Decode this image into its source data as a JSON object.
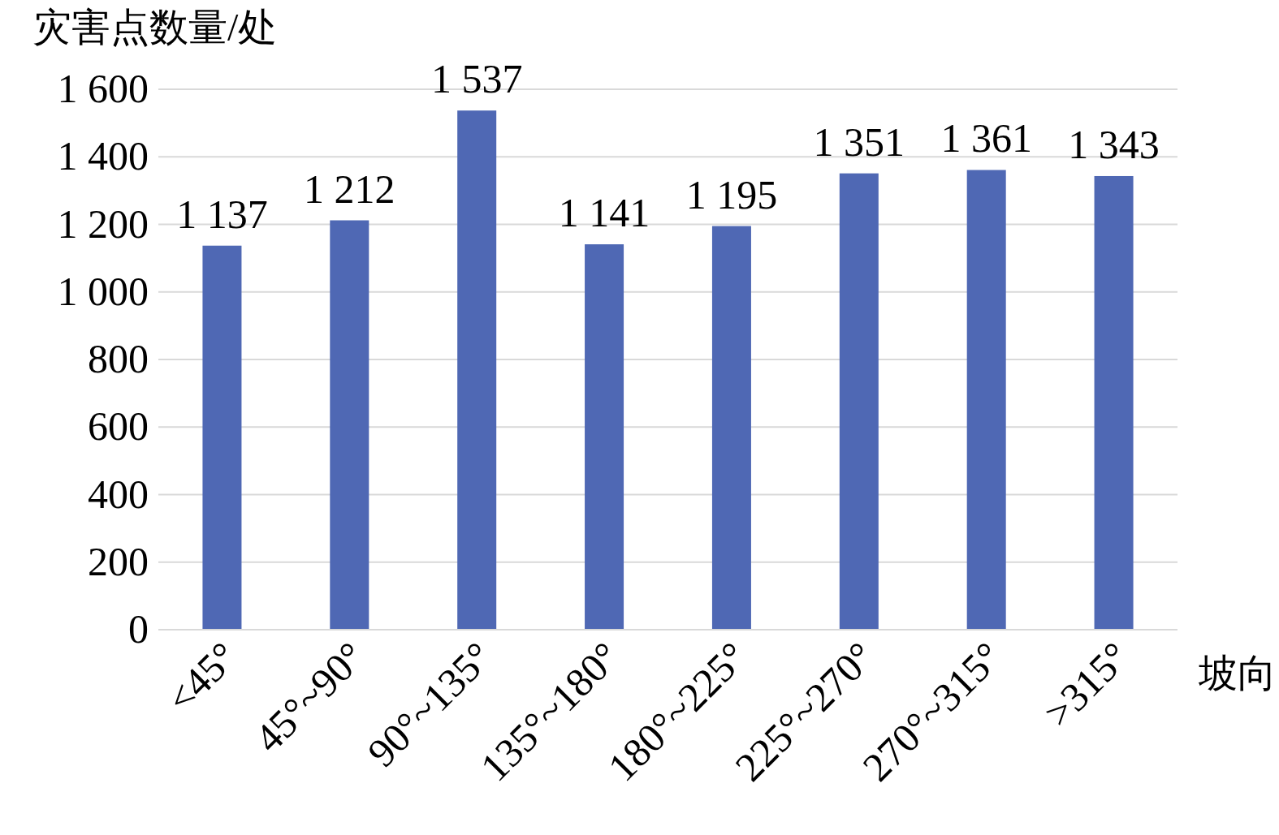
{
  "chart_data": {
    "type": "bar",
    "ylabel": "灾害点数量/处",
    "xlabel": "坡向",
    "categories": [
      "<45°",
      "45°~90°",
      "90°~135°",
      "135°~180°",
      "180°~225°",
      "225°~270°",
      "270°~315°",
      ">315°"
    ],
    "values": [
      1137,
      1212,
      1537,
      1141,
      1195,
      1351,
      1361,
      1343
    ],
    "value_labels": [
      "1 137",
      "1 212",
      "1 537",
      "1 141",
      "1 195",
      "1 351",
      "1 361",
      "1 343"
    ],
    "color": "#4f68b4",
    "ylim": [
      0,
      1600
    ],
    "yticks": [
      0,
      200,
      400,
      600,
      800,
      {
        "value": 1000,
        "label": "1 000"
      },
      {
        "value": 1200,
        "label": "1 200"
      },
      {
        "value": 1400,
        "label": "1 400"
      },
      {
        "value": 1600,
        "label": "1 600"
      }
    ],
    "grid": "y"
  }
}
